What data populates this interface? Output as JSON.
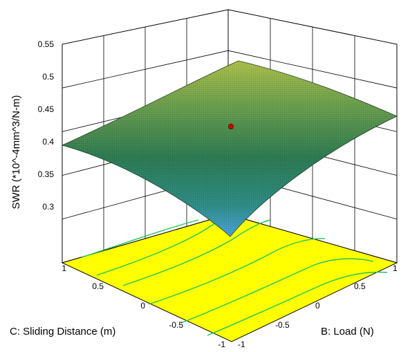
{
  "chart_data": {
    "type": "surface3d",
    "title": "",
    "zlabel": "SWR (*10^-4mm^3/N-m)",
    "xlabel": "C: Sliding Distance (m)",
    "ylabel": "B: Load (N)",
    "z_ticks": [
      "0.3",
      "0.35",
      "0.4",
      "0.45",
      "0.5",
      "0.55"
    ],
    "x_ticks": [
      "1",
      "0.5",
      "0",
      "-0.5",
      "-1"
    ],
    "y_ticks": [
      "-1",
      "-0.5",
      "0",
      "0.5",
      "1"
    ],
    "zlim": [
      0.27,
      0.55
    ],
    "xlim": [
      -1,
      1
    ],
    "ylim": [
      -1,
      1
    ],
    "corners": [
      {
        "C": 1,
        "B": -1,
        "SWR": 0.39
      },
      {
        "C": -1,
        "B": -1,
        "SWR": 0.285
      },
      {
        "C": -1,
        "B": 1,
        "SWR": 0.435
      },
      {
        "C": 1,
        "B": 1,
        "SWR": 0.525
      }
    ],
    "design_point": {
      "C": 0,
      "B": 0,
      "SWR": 0.447
    },
    "colors": {
      "floor": "#ffff00",
      "contour": "#22c45f",
      "surface_high": "#a6c24a",
      "surface_mid": "#3e8f5a",
      "surface_low": "#4fa6de",
      "point": "#cc0000"
    }
  }
}
